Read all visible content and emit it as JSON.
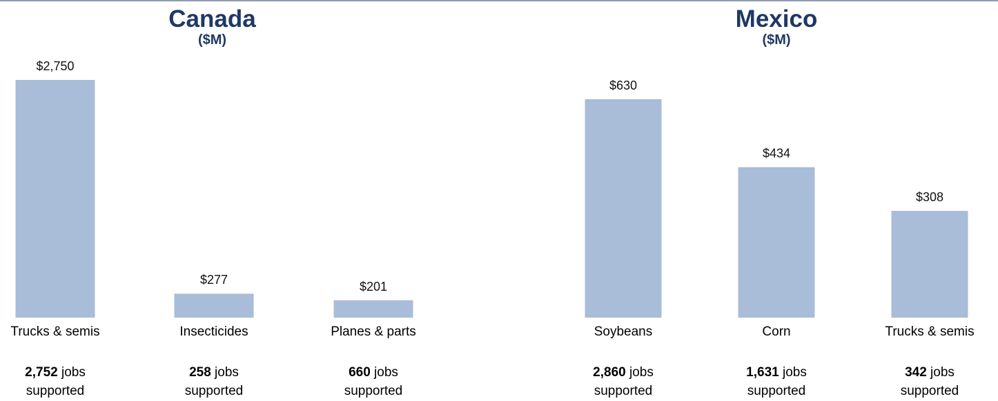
{
  "chart_data": [
    {
      "type": "bar",
      "title": "Canada",
      "subtitle": "($M)",
      "categories": [
        "Trucks & semis",
        "Insecticides",
        "Planes & parts"
      ],
      "values": [
        2750,
        277,
        201
      ],
      "value_labels": [
        "$2,750",
        "$277",
        "$201"
      ],
      "jobs": [
        {
          "count": "2,752",
          "jobs_word": "jobs",
          "supported_word": "supported"
        },
        {
          "count": "258",
          "jobs_word": "jobs",
          "supported_word": "supported"
        },
        {
          "count": "660",
          "jobs_word": "jobs",
          "supported_word": "supported"
        }
      ],
      "bar_color": "#a9bcd8"
    },
    {
      "type": "bar",
      "title": "Mexico",
      "subtitle": "($M)",
      "categories": [
        "Soybeans",
        "Corn",
        "Trucks & semis"
      ],
      "values": [
        630,
        434,
        308
      ],
      "value_labels": [
        "$630",
        "$434",
        "$308"
      ],
      "jobs": [
        {
          "count": "2,860",
          "jobs_word": "jobs",
          "supported_word": "supported"
        },
        {
          "count": "1,631",
          "jobs_word": "jobs",
          "supported_word": "supported"
        },
        {
          "count": "342",
          "jobs_word": "jobs",
          "supported_word": "supported"
        }
      ],
      "bar_color": "#a9bcd8"
    }
  ]
}
